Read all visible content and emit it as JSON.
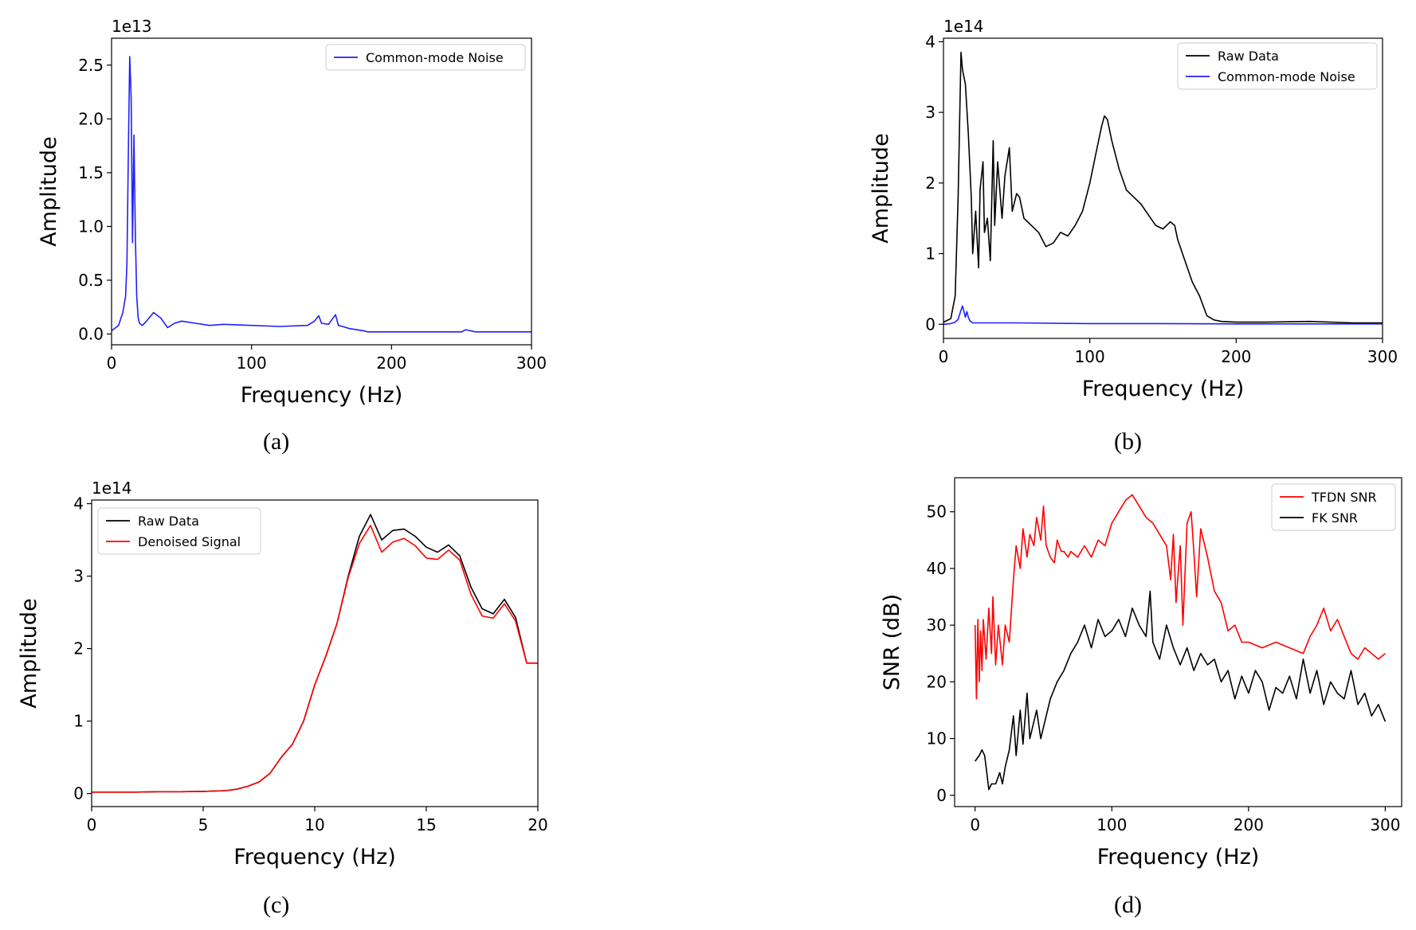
{
  "captions": [
    "(a)",
    "(b)",
    "(c)",
    "(d)"
  ],
  "chart_data": [
    {
      "type": "line",
      "xlabel": "Frequency (Hz)",
      "ylabel": "Amplitude",
      "offset_text": "1e13",
      "xlim": [
        0,
        300
      ],
      "ylim": [
        -0.1,
        2.75
      ],
      "xticks": [
        0,
        100,
        200,
        300
      ],
      "xticklabels": [
        "0",
        "100",
        "200",
        "300"
      ],
      "yticks": [
        0.0,
        0.5,
        1.0,
        1.5,
        2.0,
        2.5
      ],
      "yticklabels": [
        "0.0",
        "0.5",
        "1.0",
        "1.5",
        "2.0",
        "2.5"
      ],
      "legend": "top-right",
      "series": [
        {
          "name": "Common-mode Noise",
          "color": "#1f1fff",
          "x": [
            0,
            2,
            5,
            8,
            10,
            11,
            12,
            13,
            14,
            15,
            16,
            17,
            18,
            19,
            20,
            22,
            25,
            30,
            35,
            40,
            45,
            50,
            60,
            70,
            80,
            100,
            120,
            140,
            145,
            148,
            150,
            155,
            160,
            162,
            165,
            170,
            180,
            183,
            190,
            200,
            220,
            240,
            250,
            253,
            260,
            280,
            300
          ],
          "y": [
            0.03,
            0.05,
            0.08,
            0.2,
            0.35,
            0.65,
            1.7,
            2.58,
            2.2,
            0.85,
            1.85,
            0.9,
            0.35,
            0.15,
            0.1,
            0.08,
            0.12,
            0.2,
            0.15,
            0.06,
            0.1,
            0.12,
            0.1,
            0.08,
            0.09,
            0.08,
            0.07,
            0.08,
            0.12,
            0.17,
            0.1,
            0.09,
            0.18,
            0.08,
            0.07,
            0.05,
            0.03,
            0.02,
            0.02,
            0.02,
            0.02,
            0.02,
            0.02,
            0.04,
            0.02,
            0.02,
            0.02
          ]
        }
      ]
    },
    {
      "type": "line",
      "xlabel": "Frequency (Hz)",
      "ylabel": "Amplitude",
      "offset_text": "1e14",
      "xlim": [
        0,
        300
      ],
      "ylim": [
        -0.2,
        4.05
      ],
      "xticks": [
        0,
        100,
        200,
        300
      ],
      "xticklabels": [
        "0",
        "100",
        "200",
        "300"
      ],
      "yticks": [
        0,
        1,
        2,
        3,
        4
      ],
      "yticklabels": [
        "0",
        "1",
        "2",
        "3",
        "4"
      ],
      "legend": "top-right",
      "series": [
        {
          "name": "Raw Data",
          "color": "#000000",
          "x": [
            0,
            5,
            8,
            10,
            12,
            13,
            15,
            17,
            19,
            20,
            22,
            24,
            25,
            27,
            28,
            30,
            32,
            34,
            35,
            37,
            40,
            42,
            45,
            47,
            50,
            52,
            55,
            60,
            65,
            70,
            75,
            80,
            85,
            90,
            95,
            100,
            105,
            108,
            110,
            112,
            115,
            120,
            125,
            130,
            135,
            140,
            145,
            150,
            155,
            158,
            160,
            165,
            170,
            175,
            180,
            185,
            190,
            200,
            220,
            250,
            280,
            300
          ],
          "y": [
            0.03,
            0.08,
            0.4,
            1.8,
            3.85,
            3.6,
            3.4,
            2.7,
            1.8,
            1.0,
            1.6,
            0.8,
            1.9,
            2.3,
            1.3,
            1.5,
            0.9,
            2.6,
            1.4,
            2.3,
            1.5,
            2.1,
            2.5,
            1.6,
            1.85,
            1.8,
            1.5,
            1.4,
            1.3,
            1.1,
            1.15,
            1.3,
            1.25,
            1.4,
            1.6,
            2.0,
            2.5,
            2.8,
            2.95,
            2.9,
            2.6,
            2.2,
            1.9,
            1.8,
            1.7,
            1.55,
            1.4,
            1.35,
            1.45,
            1.4,
            1.2,
            0.9,
            0.6,
            0.4,
            0.12,
            0.06,
            0.04,
            0.03,
            0.03,
            0.04,
            0.02,
            0.02
          ]
        },
        {
          "name": "Common-mode Noise",
          "color": "#1f1fff",
          "x": [
            0,
            5,
            8,
            10,
            12,
            13,
            14,
            15,
            16,
            17,
            18,
            20,
            25,
            50,
            100,
            150,
            200,
            250,
            300
          ],
          "y": [
            0.0,
            0.01,
            0.03,
            0.07,
            0.2,
            0.26,
            0.18,
            0.1,
            0.18,
            0.1,
            0.05,
            0.02,
            0.02,
            0.02,
            0.01,
            0.01,
            0.005,
            0.005,
            0.005
          ]
        }
      ]
    },
    {
      "type": "line",
      "xlabel": "Frequency (Hz)",
      "ylabel": "Amplitude",
      "offset_text": "1e14",
      "xlim": [
        0,
        20
      ],
      "ylim": [
        -0.18,
        4.05
      ],
      "xticks": [
        0,
        5,
        10,
        15,
        20
      ],
      "xticklabels": [
        "0",
        "5",
        "10",
        "15",
        "20"
      ],
      "yticks": [
        0,
        1,
        2,
        3,
        4
      ],
      "yticklabels": [
        "0",
        "1",
        "2",
        "3",
        "4"
      ],
      "legend": "top-left",
      "series": [
        {
          "name": "Raw Data",
          "color": "#000000",
          "x": [
            0,
            1,
            2,
            3,
            4,
            5,
            6,
            6.5,
            7,
            7.5,
            8,
            8.5,
            9,
            9.5,
            10,
            10.5,
            11,
            11.5,
            12,
            12.5,
            13,
            13.5,
            14,
            14.5,
            15,
            15.5,
            16,
            16.5,
            17,
            17.5,
            18,
            18.5,
            19,
            19.5,
            20
          ],
          "y": [
            0.02,
            0.02,
            0.02,
            0.025,
            0.025,
            0.03,
            0.04,
            0.06,
            0.1,
            0.16,
            0.28,
            0.5,
            0.68,
            1.0,
            1.5,
            1.9,
            2.35,
            3.0,
            3.55,
            3.85,
            3.5,
            3.63,
            3.65,
            3.55,
            3.4,
            3.33,
            3.43,
            3.28,
            2.85,
            2.55,
            2.48,
            2.68,
            2.43,
            1.8,
            1.8
          ]
        },
        {
          "name": "Denoised Signal",
          "color": "#ff0000",
          "x": [
            0,
            1,
            2,
            3,
            4,
            5,
            6,
            6.5,
            7,
            7.5,
            8,
            8.5,
            9,
            9.5,
            10,
            10.5,
            11,
            11.5,
            12,
            12.5,
            13,
            13.5,
            14,
            14.5,
            15,
            15.5,
            16,
            16.5,
            17,
            17.5,
            18,
            18.5,
            19,
            19.5,
            20
          ],
          "y": [
            0.02,
            0.02,
            0.02,
            0.025,
            0.025,
            0.03,
            0.04,
            0.06,
            0.1,
            0.16,
            0.28,
            0.5,
            0.68,
            1.0,
            1.5,
            1.9,
            2.35,
            2.98,
            3.45,
            3.7,
            3.33,
            3.47,
            3.52,
            3.42,
            3.25,
            3.23,
            3.36,
            3.22,
            2.75,
            2.45,
            2.42,
            2.62,
            2.38,
            1.8,
            1.8
          ]
        }
      ]
    },
    {
      "type": "line",
      "xlabel": "Frequency (Hz)",
      "ylabel": "SNR (dB)",
      "xlim": [
        -15,
        312
      ],
      "ylim": [
        -2,
        56
      ],
      "xticks": [
        0,
        100,
        200,
        300
      ],
      "xticklabels": [
        "0",
        "100",
        "200",
        "300"
      ],
      "yticks": [
        0,
        10,
        20,
        30,
        40,
        50
      ],
      "yticklabels": [
        "0",
        "10",
        "20",
        "30",
        "40",
        "50"
      ],
      "legend": "top-right",
      "series": [
        {
          "name": "TFDN SNR",
          "color": "#ff0000",
          "x": [
            0,
            1,
            2,
            3,
            4,
            5,
            6,
            8,
            10,
            12,
            13,
            15,
            17,
            20,
            22,
            25,
            28,
            30,
            33,
            35,
            38,
            40,
            43,
            45,
            48,
            50,
            52,
            55,
            58,
            60,
            63,
            65,
            68,
            70,
            75,
            80,
            85,
            90,
            95,
            100,
            105,
            110,
            115,
            120,
            125,
            130,
            135,
            140,
            143,
            145,
            147,
            150,
            152,
            155,
            158,
            160,
            162,
            165,
            168,
            170,
            175,
            180,
            185,
            190,
            195,
            200,
            210,
            220,
            230,
            240,
            245,
            250,
            255,
            260,
            265,
            270,
            275,
            280,
            285,
            290,
            295,
            300
          ],
          "y": [
            30,
            17,
            31,
            20,
            29,
            22,
            31,
            24,
            33,
            25,
            35,
            23,
            30,
            23,
            30,
            27,
            38,
            44,
            40,
            47,
            42,
            46,
            44,
            49,
            45,
            51,
            44,
            42,
            41,
            45,
            43,
            43,
            42,
            43,
            42,
            44,
            42,
            45,
            44,
            48,
            50,
            52,
            53,
            51,
            49,
            48,
            46,
            44,
            38,
            46,
            34,
            44,
            30,
            48,
            50,
            43,
            35,
            47,
            44,
            42,
            36,
            34,
            29,
            30,
            27,
            27,
            26,
            27,
            26,
            25,
            28,
            30,
            33,
            29,
            31,
            28,
            25,
            24,
            26,
            25,
            24,
            25
          ]
        },
        {
          "name": "FK SNR",
          "color": "#000000",
          "x": [
            0,
            3,
            5,
            7,
            9,
            10,
            12,
            15,
            18,
            20,
            22,
            25,
            28,
            30,
            33,
            35,
            38,
            40,
            43,
            45,
            48,
            50,
            55,
            60,
            65,
            70,
            75,
            80,
            85,
            90,
            95,
            100,
            105,
            110,
            115,
            120,
            125,
            128,
            130,
            135,
            140,
            145,
            150,
            155,
            160,
            165,
            170,
            175,
            180,
            185,
            190,
            195,
            200,
            205,
            210,
            215,
            220,
            225,
            230,
            235,
            240,
            245,
            250,
            255,
            260,
            265,
            270,
            275,
            280,
            285,
            290,
            295,
            300
          ],
          "y": [
            6,
            7,
            8,
            7,
            3,
            1,
            2,
            2,
            4,
            2,
            5,
            8,
            14,
            7,
            15,
            9,
            18,
            10,
            13,
            15,
            10,
            12,
            17,
            20,
            22,
            25,
            27,
            30,
            26,
            31,
            28,
            29,
            31,
            28,
            33,
            30,
            28,
            36,
            27,
            24,
            30,
            26,
            23,
            26,
            22,
            25,
            23,
            24,
            20,
            22,
            17,
            21,
            18,
            22,
            20,
            15,
            19,
            18,
            21,
            17,
            24,
            18,
            22,
            16,
            20,
            18,
            17,
            22,
            16,
            18,
            14,
            16,
            13
          ]
        }
      ]
    }
  ]
}
